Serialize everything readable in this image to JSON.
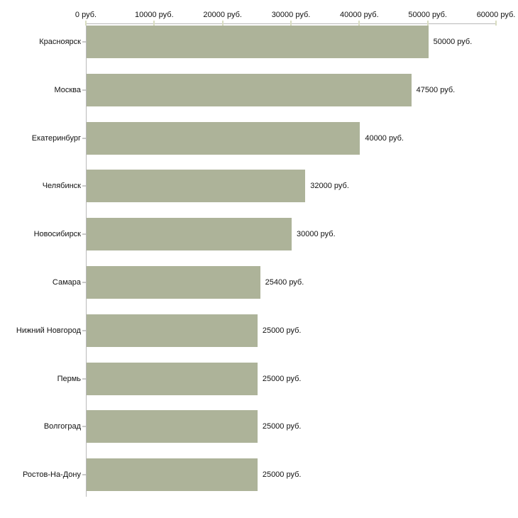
{
  "chart_data": {
    "type": "bar",
    "orientation": "horizontal",
    "title": "",
    "xlabel": "",
    "ylabel": "",
    "unit": "руб.",
    "categories": [
      "Красноярск",
      "Москва",
      "Екатеринбург",
      "Челябинск",
      "Новосибирск",
      "Самара",
      "Нижний Новгород",
      "Пермь",
      "Волгоград",
      "Ростов-На-Дону"
    ],
    "values": [
      50000,
      47500,
      40000,
      32000,
      30000,
      25400,
      25000,
      25000,
      25000,
      25000
    ],
    "value_labels": [
      "50000 руб.",
      "47500 руб.",
      "40000 руб.",
      "32000 руб.",
      "30000 руб.",
      "25400 руб.",
      "25000 руб.",
      "25000 руб.",
      "25000 руб.",
      "25000 руб."
    ],
    "x_ticks": [
      0,
      10000,
      20000,
      30000,
      40000,
      50000,
      60000
    ],
    "x_tick_labels": [
      "0 руб.",
      "10000 руб.",
      "20000 руб.",
      "30000 руб.",
      "40000 руб.",
      "50000 руб.",
      "60000 руб."
    ],
    "xlim": [
      0,
      60000
    ],
    "grid": false,
    "legend": false,
    "colors": {
      "bar": "#adb399",
      "axis": "#b9b9b9",
      "tick": "#d9ddc1",
      "category_dash": "#c9c9c9",
      "text": "#111111",
      "background": "#ffffff"
    }
  }
}
